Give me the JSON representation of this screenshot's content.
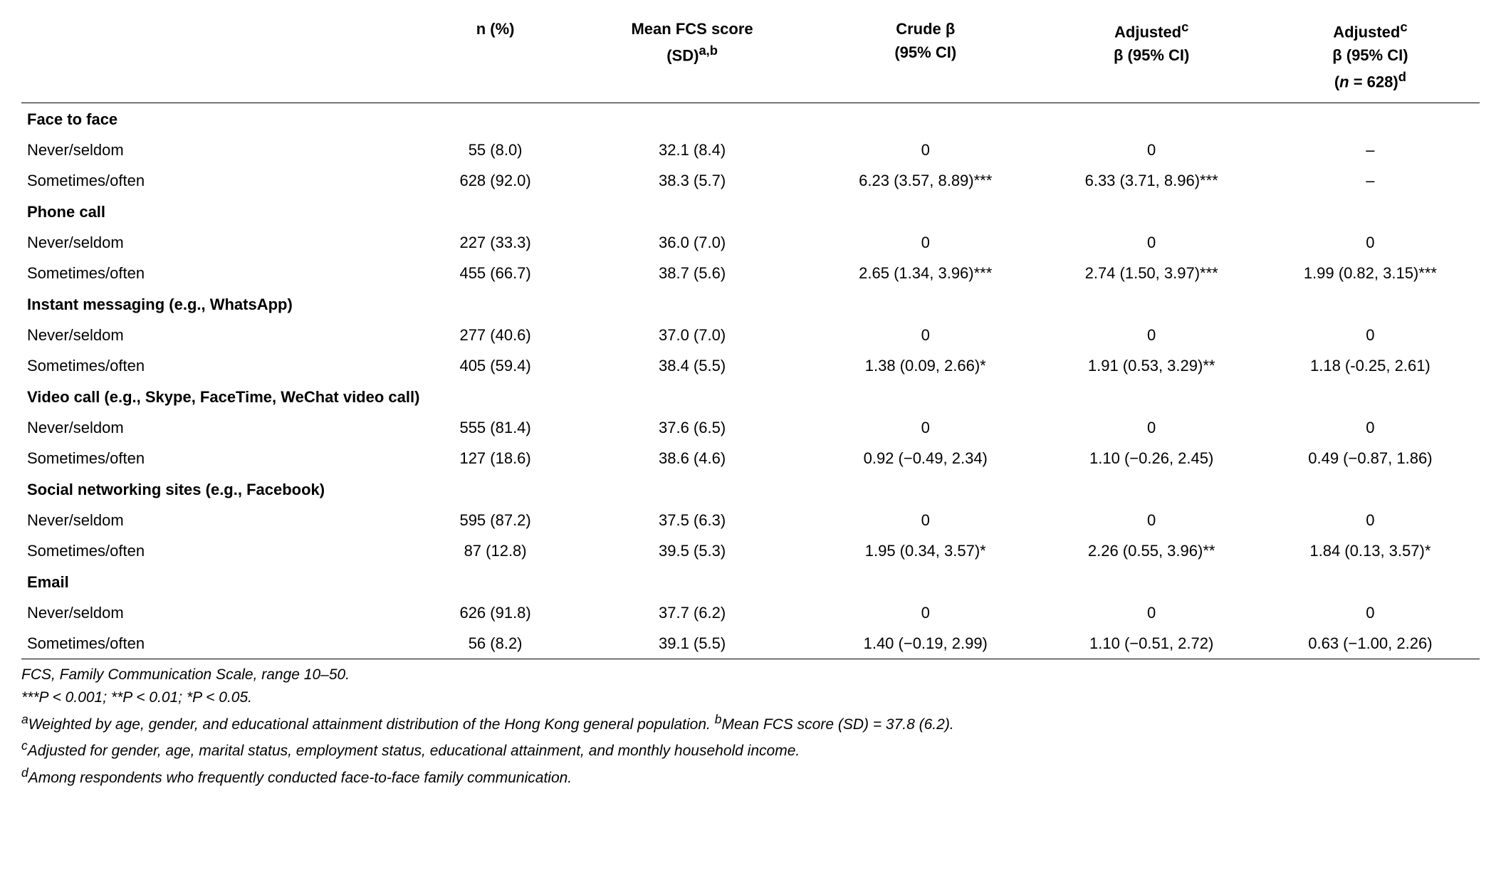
{
  "type": "table",
  "colors": {
    "text": "#000000",
    "background": "#ffffff",
    "rule": "#000000"
  },
  "fonts": {
    "family": "Arial",
    "body_size_pt": 16,
    "header_weight": "bold"
  },
  "columns": [
    {
      "key": "label",
      "header": ""
    },
    {
      "key": "n_pct",
      "header_line1": "n (%)"
    },
    {
      "key": "mean_fcs",
      "header_line1": "Mean FCS score",
      "header_line2": "(SD)ᵃ,ᵇ",
      "header_html": "Mean FCS score<br>(SD)<sup>a,b</sup>"
    },
    {
      "key": "crude",
      "header_line1": "Crude β",
      "header_line2": "(95% CI)",
      "header_html": "Crude β<br>(95% CI)"
    },
    {
      "key": "adj1",
      "header_line1": "Adjustedᶜ",
      "header_line2": "β (95% CI)",
      "header_html": "Adjusted<sup>c</sup><br>β (95% CI)"
    },
    {
      "key": "adj2",
      "header_line1": "Adjustedᶜ",
      "header_line2": "β (95% CI)",
      "header_line3": "(n = 628)ᵈ",
      "header_html": "Adjusted<sup>c</sup><br>β (95% CI)<br>(<i>n</i> = 628)<sup>d</sup>"
    }
  ],
  "groups": [
    {
      "title": "Face to face",
      "rows": [
        {
          "label": "Never/seldom",
          "n_pct": "55 (8.0)",
          "mean_fcs": "32.1 (8.4)",
          "crude": "0",
          "adj1": "0",
          "adj2": "–"
        },
        {
          "label": "Sometimes/often",
          "n_pct": "628 (92.0)",
          "mean_fcs": "38.3 (5.7)",
          "crude": "6.23 (3.57, 8.89)***",
          "adj1": "6.33 (3.71, 8.96)***",
          "adj2": "–"
        }
      ]
    },
    {
      "title": "Phone call",
      "rows": [
        {
          "label": "Never/seldom",
          "n_pct": "227 (33.3)",
          "mean_fcs": "36.0 (7.0)",
          "crude": "0",
          "adj1": "0",
          "adj2": "0"
        },
        {
          "label": "Sometimes/often",
          "n_pct": "455 (66.7)",
          "mean_fcs": "38.7 (5.6)",
          "crude": "2.65 (1.34, 3.96)***",
          "adj1": "2.74 (1.50, 3.97)***",
          "adj2": "1.99 (0.82, 3.15)***"
        }
      ]
    },
    {
      "title": "Instant messaging (e.g., WhatsApp)",
      "rows": [
        {
          "label": "Never/seldom",
          "n_pct": "277 (40.6)",
          "mean_fcs": "37.0 (7.0)",
          "crude": "0",
          "adj1": "0",
          "adj2": "0"
        },
        {
          "label": "Sometimes/often",
          "n_pct": "405 (59.4)",
          "mean_fcs": "38.4 (5.5)",
          "crude": "1.38 (0.09, 2.66)*",
          "adj1": "1.91 (0.53, 3.29)**",
          "adj2": "1.18 (-0.25, 2.61)"
        }
      ]
    },
    {
      "title": "Video call (e.g., Skype, FaceTime, WeChat video call)",
      "rows": [
        {
          "label": "Never/seldom",
          "n_pct": "555 (81.4)",
          "mean_fcs": "37.6 (6.5)",
          "crude": "0",
          "adj1": "0",
          "adj2": "0"
        },
        {
          "label": "Sometimes/often",
          "n_pct": "127 (18.6)",
          "mean_fcs": "38.6 (4.6)",
          "crude": "0.92 (−0.49, 2.34)",
          "adj1": "1.10 (−0.26, 2.45)",
          "adj2": "0.49 (−0.87, 1.86)"
        }
      ]
    },
    {
      "title": "Social networking sites (e.g., Facebook)",
      "rows": [
        {
          "label": "Never/seldom",
          "n_pct": "595 (87.2)",
          "mean_fcs": "37.5 (6.3)",
          "crude": "0",
          "adj1": "0",
          "adj2": "0"
        },
        {
          "label": "Sometimes/often",
          "n_pct": "87 (12.8)",
          "mean_fcs": "39.5 (5.3)",
          "crude": "1.95 (0.34, 3.57)*",
          "adj1": "2.26 (0.55, 3.96)**",
          "adj2": "1.84 (0.13, 3.57)*"
        }
      ]
    },
    {
      "title": "Email",
      "rows": [
        {
          "label": "Never/seldom",
          "n_pct": "626 (91.8)",
          "mean_fcs": "37.7 (6.2)",
          "crude": "0",
          "adj1": "0",
          "adj2": "0"
        },
        {
          "label": "Sometimes/often",
          "n_pct": "56 (8.2)",
          "mean_fcs": "39.1 (5.5)",
          "crude": "1.40 (−0.19, 2.99)",
          "adj1": "1.10 (−0.51, 2.72)",
          "adj2": "0.63 (−1.00, 2.26)"
        }
      ]
    }
  ],
  "footnotes": [
    "FCS, Family Communication Scale, range 10–50.",
    "***P < 0.001; **P < 0.01; *P < 0.05.",
    "<sup>a</sup>Weighted by age, gender, and educational attainment distribution of the Hong Kong general population. <sup>b</sup>Mean FCS score (SD) = 37.8 (6.2).",
    "<sup>c</sup>Adjusted for gender, age, marital status, employment status, educational attainment, and monthly household income.",
    "<sup>d</sup>Among respondents who frequently conducted face-to-face family communication."
  ]
}
